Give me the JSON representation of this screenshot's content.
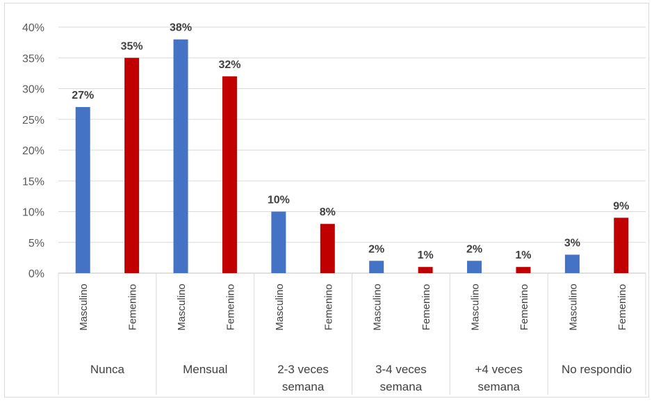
{
  "chart_data": {
    "type": "bar",
    "title": "",
    "xlabel": "",
    "ylabel": "",
    "ylim": [
      0,
      40
    ],
    "yticks": [
      "0%",
      "5%",
      "10%",
      "15%",
      "20%",
      "25%",
      "30%",
      "35%",
      "40%"
    ],
    "grid": true,
    "legend": "none",
    "colors": {
      "Masculino": "#4472C4",
      "Femenino": "#C00000"
    },
    "groups": [
      {
        "label": [
          "Nunca"
        ],
        "bars": [
          {
            "sub": "Masculino",
            "value": 27,
            "label": "27%"
          },
          {
            "sub": "Femenino",
            "value": 35,
            "label": "35%"
          }
        ]
      },
      {
        "label": [
          "Mensual"
        ],
        "bars": [
          {
            "sub": "Masculino",
            "value": 38,
            "label": "38%"
          },
          {
            "sub": "Femenino",
            "value": 32,
            "label": "32%"
          }
        ]
      },
      {
        "label": [
          "2-3 veces",
          "semana"
        ],
        "bars": [
          {
            "sub": "Masculino",
            "value": 10,
            "label": "10%"
          },
          {
            "sub": "Femenino",
            "value": 8,
            "label": "8%"
          }
        ]
      },
      {
        "label": [
          "3-4 veces",
          "semana"
        ],
        "bars": [
          {
            "sub": "Masculino",
            "value": 2,
            "label": "2%"
          },
          {
            "sub": "Femenino",
            "value": 1,
            "label": "1%"
          }
        ]
      },
      {
        "label": [
          "+4 veces",
          "semana"
        ],
        "bars": [
          {
            "sub": "Masculino",
            "value": 2,
            "label": "2%"
          },
          {
            "sub": "Femenino",
            "value": 1,
            "label": "1%"
          }
        ]
      },
      {
        "label": [
          "No respondio"
        ],
        "bars": [
          {
            "sub": "Masculino",
            "value": 3,
            "label": "3%"
          },
          {
            "sub": "Femenino",
            "value": 9,
            "label": "9%"
          }
        ]
      }
    ]
  }
}
